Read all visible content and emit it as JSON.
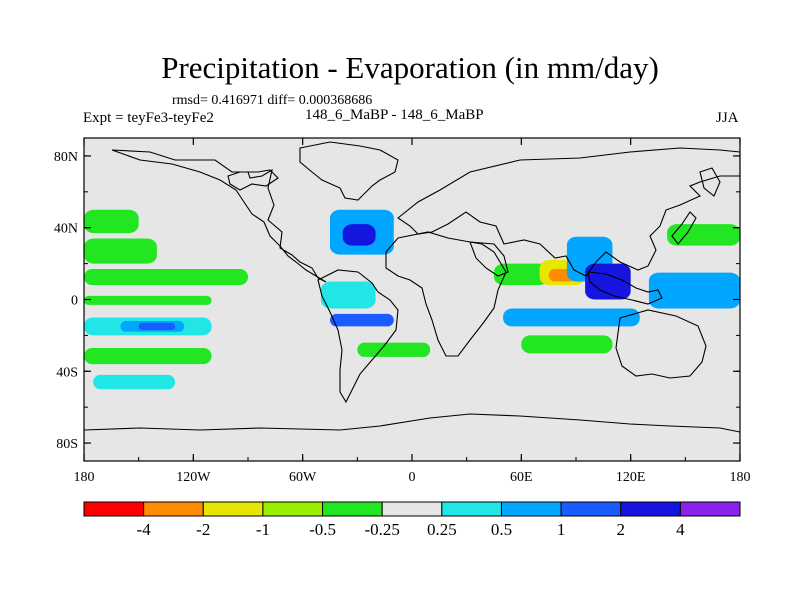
{
  "title": "Precipitation - Evaporation (in mm/day)",
  "stats_line": "rmsd= 0.416971 diff= 0.000368686",
  "left_label": "Expt = teyFe3-teyFe2",
  "center_label": "148_6_MaBP - 148_6_MaBP",
  "right_label": "JJA",
  "y_ticks": [
    {
      "value": 80,
      "label": "80N"
    },
    {
      "value": 40,
      "label": "40N"
    },
    {
      "value": 0,
      "label": "0"
    },
    {
      "value": -40,
      "label": "40S"
    },
    {
      "value": -80,
      "label": "80S"
    }
  ],
  "x_ticks": [
    {
      "value": -180,
      "label": "180"
    },
    {
      "value": -120,
      "label": "120W"
    },
    {
      "value": -60,
      "label": "60W"
    },
    {
      "value": 0,
      "label": "0"
    },
    {
      "value": 60,
      "label": "60E"
    },
    {
      "value": 120,
      "label": "120E"
    },
    {
      "value": 180,
      "label": "180"
    }
  ],
  "colorbar": {
    "colors": [
      "#ff0000",
      "#ff8c00",
      "#e6e600",
      "#98f000",
      "#22e622",
      "#e6e6e6",
      "#22e6e6",
      "#00a6ff",
      "#1a5cff",
      "#1515e0",
      "#8a22ee"
    ],
    "labels": [
      "-4",
      "-2",
      "-1",
      "-0.5",
      "-0.25",
      "0.25",
      "0.5",
      "1",
      "2",
      "4"
    ]
  },
  "chart_data": {
    "type": "heatmap",
    "title": "Precipitation - Evaporation (in mm/day)",
    "subtitle": "rmsd= 0.416971 diff= 0.000368686",
    "xlim": [
      -180,
      180
    ],
    "ylim": [
      -90,
      90
    ],
    "levels": [
      -4,
      -2,
      -1,
      -0.5,
      -0.25,
      0.25,
      0.5,
      1,
      2,
      4
    ],
    "background_color": "#e6e6e6",
    "features": [
      {
        "desc": "NE Pacific",
        "lon": [
          -180,
          -150
        ],
        "lat": [
          37,
          50
        ],
        "color": "#22e622"
      },
      {
        "desc": "N Pacific",
        "lon": [
          -180,
          -140
        ],
        "lat": [
          20,
          34
        ],
        "color": "#22e622"
      },
      {
        "desc": "N Pacific",
        "lon": [
          -180,
          -90
        ],
        "lat": [
          8,
          17
        ],
        "color": "#22e622"
      },
      {
        "desc": "Equatorial Pacific",
        "lon": [
          -180,
          -110
        ],
        "lat": [
          -3,
          2
        ],
        "color": "#22e622"
      },
      {
        "desc": "Tropical S Pacific",
        "lon": [
          -180,
          -110
        ],
        "lat": [
          -20,
          -10
        ],
        "color": "#22e6e6"
      },
      {
        "desc": "Tropical S Pacific",
        "lon": [
          -160,
          -125
        ],
        "lat": [
          -18,
          -12
        ],
        "color": "#00a6ff"
      },
      {
        "desc": "Tropical S Pacific",
        "lon": [
          -150,
          -130
        ],
        "lat": [
          -17,
          -13
        ],
        "color": "#1a5cff"
      },
      {
        "desc": "S Pacific",
        "lon": [
          -180,
          -110
        ],
        "lat": [
          -36,
          -27
        ],
        "color": "#22e622"
      },
      {
        "desc": "S Pacific",
        "lon": [
          -175,
          -130
        ],
        "lat": [
          -50,
          -42
        ],
        "color": "#22e6e6"
      },
      {
        "desc": "N Atlantic",
        "lon": [
          -45,
          -10
        ],
        "lat": [
          25,
          50
        ],
        "color": "#00a6ff"
      },
      {
        "desc": "N Atlantic",
        "lon": [
          -38,
          -20
        ],
        "lat": [
          30,
          42
        ],
        "color": "#1515e0"
      },
      {
        "desc": "Tropical Atlantic",
        "lon": [
          -50,
          -20
        ],
        "lat": [
          -5,
          10
        ],
        "color": "#22e6e6"
      },
      {
        "desc": "Tropical Atlantic",
        "lon": [
          -45,
          -10
        ],
        "lat": [
          -15,
          -8
        ],
        "color": "#1a5cff"
      },
      {
        "desc": "S Atlantic",
        "lon": [
          -30,
          10
        ],
        "lat": [
          -32,
          -24
        ],
        "color": "#22e622"
      },
      {
        "desc": "Arabian Sea",
        "lon": [
          45,
          75
        ],
        "lat": [
          8,
          20
        ],
        "color": "#22e622"
      },
      {
        "desc": "India",
        "lon": [
          70,
          95
        ],
        "lat": [
          8,
          22
        ],
        "color": "#e6e600"
      },
      {
        "desc": "India",
        "lon": [
          75,
          90
        ],
        "lat": [
          10,
          17
        ],
        "color": "#ff8c00"
      },
      {
        "desc": "Bay of Bengal",
        "lon": [
          85,
          110
        ],
        "lat": [
          10,
          35
        ],
        "color": "#00a6ff"
      },
      {
        "desc": "Bay of Bengal",
        "lon": [
          95,
          120
        ],
        "lat": [
          0,
          20
        ],
        "color": "#1515e0"
      },
      {
        "desc": "Indian Ocean",
        "lon": [
          50,
          125
        ],
        "lat": [
          -15,
          -5
        ],
        "color": "#00a6ff"
      },
      {
        "desc": "S Indian Ocean",
        "lon": [
          60,
          110
        ],
        "lat": [
          -30,
          -20
        ],
        "color": "#22e622"
      },
      {
        "desc": "W Pacific",
        "lon": [
          130,
          180
        ],
        "lat": [
          -5,
          15
        ],
        "color": "#00a6ff"
      },
      {
        "desc": "NW Pacific",
        "lon": [
          140,
          180
        ],
        "lat": [
          30,
          42
        ],
        "color": "#22e622"
      }
    ]
  }
}
